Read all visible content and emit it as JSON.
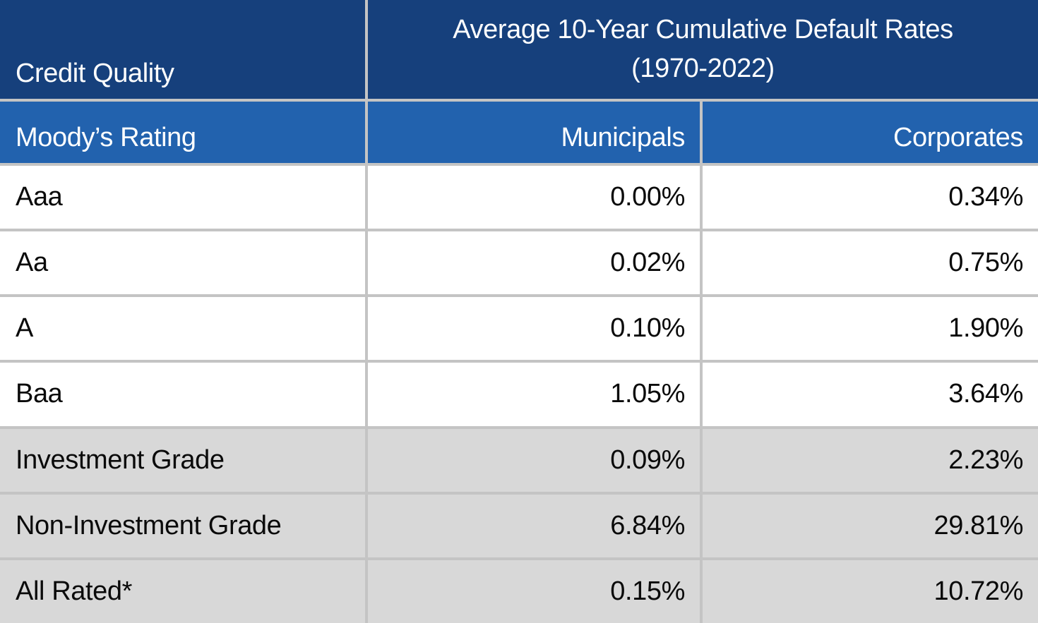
{
  "chart_data": {
    "type": "table",
    "title": "Average 10-Year Cumulative Default Rates (1970-2022)",
    "columns": [
      "Moody's Rating",
      "Municipals",
      "Corporates"
    ],
    "rows": [
      [
        "Aaa",
        "0.00%",
        "0.34%"
      ],
      [
        "Aa",
        "0.02%",
        "0.75%"
      ],
      [
        "A",
        "0.10%",
        "1.90%"
      ],
      [
        "Baa",
        "1.05%",
        "3.64%"
      ],
      [
        "Investment Grade",
        "0.09%",
        "2.23%"
      ],
      [
        "Non-Investment Grade",
        "6.84%",
        "29.81%"
      ],
      [
        "All Rated*",
        "0.15%",
        "10.72%"
      ]
    ],
    "layout_hints": {
      "shaded_summary_rows": [
        "Investment Grade",
        "Non-Investment Grade",
        "All Rated*"
      ],
      "value_alignment": "right"
    }
  },
  "header": {
    "credit_quality": "Credit Quality",
    "title_line1": "Average 10-Year Cumulative Default Rates",
    "title_line2": "(1970-2022)",
    "rating_label": "Moody’s Rating",
    "municipals": "Municipals",
    "corporates": "Corporates"
  },
  "rows": [
    {
      "label": "Aaa",
      "municipals": "0.00%",
      "corporates": "0.34%"
    },
    {
      "label": "Aa",
      "municipals": "0.02%",
      "corporates": "0.75%"
    },
    {
      "label": "A",
      "municipals": "0.10%",
      "corporates": "1.90%"
    },
    {
      "label": "Baa",
      "municipals": "1.05%",
      "corporates": "3.64%"
    },
    {
      "label": "Investment Grade",
      "municipals": "0.09%",
      "corporates": "2.23%"
    },
    {
      "label": "Non-Investment Grade",
      "municipals": "6.84%",
      "corporates": "29.81%"
    },
    {
      "label": "All Rated*",
      "municipals": "0.15%",
      "corporates": "10.72%"
    }
  ],
  "colors": {
    "header_dark_blue": "#16407c",
    "header_blue": "#2262ae",
    "shaded_row_gray": "#d8d8d8",
    "grid_line_gray": "#c4c4c4",
    "header_text": "#ffffff",
    "body_text": "#0a0a0a"
  }
}
